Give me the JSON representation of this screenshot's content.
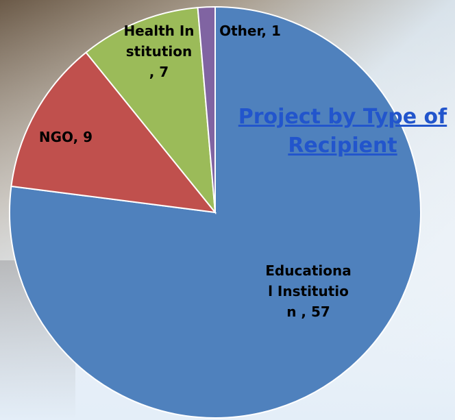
{
  "chart_data": {
    "type": "pie",
    "title": "Project by Type of Recipient",
    "categories": [
      "Educational Institution",
      "NGO",
      "Health Institution",
      "Other"
    ],
    "values": [
      57,
      9,
      7,
      1
    ],
    "value_labels": [
      "Educational Institution , 57",
      "NGO, 9",
      "Health Institution , 7",
      "Other, 1"
    ],
    "colors": [
      "#4f81bd",
      "#c0504d",
      "#9bbb59",
      "#8064a2"
    ]
  }
}
